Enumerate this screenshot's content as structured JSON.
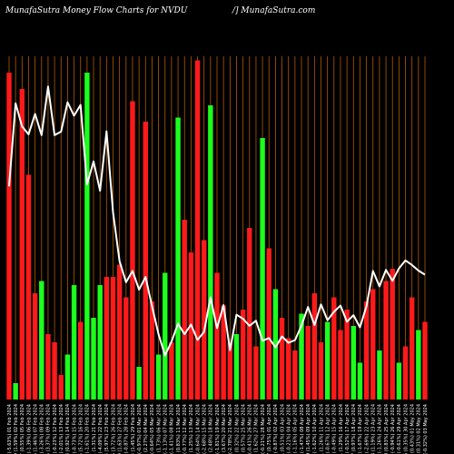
{
  "header": {
    "title": "MunafaSutra  Money Flow  Charts for NVDU",
    "site": "/] MunafaSutra.com"
  },
  "chart_data": {
    "type": "bar",
    "title": "MunafaSutra  Money Flow  Charts for NVDU",
    "xlabel": "",
    "ylabel": "",
    "colors": {
      "up": "#1dff1d",
      "down": "#ff1a1a",
      "line": "#ffffff",
      "grid": "#b35a00",
      "background": "#000000"
    },
    "categories": [
      "121.63 (-5.63%) 01 Feb 2024",
      "128.89 (1.59%) 02 Feb 2024",
      "126.87 (0.55%) 05 Feb 2024",
      "126.18 (-1.39%) 06 Feb 2024",
      "127.96 (1.46%) 07 Feb 2024",
      "126.11 (-3.26%) 08 Feb 2024",
      "130.36 (3.37%) 09 Feb 2024",
      "126.11 (-0.23%) 12 Feb 2024",
      "126.41 (-2.01%) 13 Feb 2024",
      "128.98 (0.92%) 14 Feb 2024",
      "127.81 (-0.73%) 15 Feb 2024",
      "128.75 (5.72%) 16 Feb 2024",
      "121.81 (-1.61%) 20 Feb 2024",
      "123.81 (1.31%) 21 Feb 2024",
      "121.25 (-4.09%) 22 Feb 2024",
      "126.44 (5.97%) 23 Feb 2024",
      "119.36 (3.72%) 26 Feb 2024",
      "115.09 (1.63%) 27 Feb 2024",
      "113.25 (-0.87%) 28 Feb 2024",
      "114.24 (1.45%) 29 Feb 2024",
      "112.61 (-0.97%) 01 Mar 2024",
      "113.71 (2.27%) 04 Mar 2024",
      "111.16 (-0.64%) 05 Mar 2024",
      "108.71 (1.73%) 06 Mar 2024",
      "106.85 (-1.13%) 07 Mar 2024",
      "108.07 (-1.41%) 08 Mar 2024",
      "109.62 (0.83%) 11 Mar 2024",
      "108.71 (-0.77%) 12 Mar 2024",
      "109.55 (1.25%) 13 Mar 2024",
      "108.21 (-0.64%) 14 Mar 2024",
      "108.90 (-2.68%) 15 Mar 2024",
      "111.93 (2.48%) 18 Mar 2024",
      "109.24 (-1.81%) 19 Mar 2024",
      "111.25 (3.67%) 20 Mar 2024",
      "107.31 (-2.78%) 21 Mar 2024",
      "110.41 (0.32%) 22 Mar 2024",
      "110.06 (0.57%) 25 Mar 2024",
      "109.44 (-0.41%) 26 Mar 2024",
      "109.89 (1.62%) 27 Mar 2024",
      "108.14 (-0.21%) 28 Mar 2024",
      "108.37 (0.75%) 01 Apr 2024",
      "107.56 (-0.87%) 02 Apr 2024",
      "108.51 (0.51%) 03 Apr 2024",
      "107.96 (-0.21%) 04 Apr 2024",
      "108.19 (-1.16%) 05 Apr 2024",
      "109.46 (-1.47%) 08 Apr 2024",
      "111.09 (1.45%) 09 Apr 2024",
      "109.51 (-1.62%) 10 Apr 2024",
      "111.31 (1.26%) 11 Apr 2024",
      "109.93 (-0.67%) 12 Apr 2024",
      "110.67 (-0.49%) 15 Apr 2024",
      "111.21 (1.29%) 16 Apr 2024",
      "109.80 (-0.52%) 17 Apr 2024",
      "110.37 (0.97%) 18 Apr 2024",
      "109.31 (-1.67%) 19 Apr 2024",
      "111.16 (-2.69%) 22 Apr 2024",
      "114.24 (1.19%) 23 Apr 2024",
      "112.89 (-1.26%) 24 Apr 2024",
      "114.33 (0.83%) 25 Apr 2024",
      "113.38 (-0.94%) 26 Apr 2024",
      "114.46 (-0.61%) 29 Apr 2024",
      "115.16 (0.35%) 30 Apr 2024",
      "114.76 (0.43%) 01 May 2024",
      "114.27 (0.31%) 02 May 2024",
      "113.91 (-0.32%) 03 May 2024"
    ],
    "flow": [
      "down",
      "up",
      "down",
      "down",
      "down",
      "up",
      "down",
      "down",
      "down",
      "up",
      "up",
      "down",
      "up",
      "up",
      "up",
      "down",
      "down",
      "down",
      "down",
      "down",
      "up",
      "down",
      "down",
      "up",
      "up",
      "down",
      "up",
      "down",
      "down",
      "down",
      "down",
      "up",
      "down",
      "down",
      "down",
      "up",
      "down",
      "down",
      "down",
      "up",
      "down",
      "up",
      "down",
      "down",
      "down",
      "up",
      "down",
      "down",
      "down",
      "up",
      "down",
      "down",
      "down",
      "up",
      "up",
      "down",
      "down",
      "up",
      "down",
      "down",
      "up",
      "down",
      "down",
      "up",
      "down"
    ],
    "values": [
      8.0,
      0.4,
      7.6,
      5.5,
      2.6,
      2.9,
      1.6,
      1.4,
      0.6,
      1.1,
      2.8,
      1.9,
      8.0,
      2.0,
      2.8,
      3.0,
      3.0,
      3.3,
      2.5,
      7.3,
      0.8,
      6.8,
      2.4,
      1.1,
      3.1,
      1.4,
      6.9,
      4.4,
      3.6,
      8.3,
      3.9,
      7.2,
      3.1,
      2.3,
      1.4,
      1.6,
      2.2,
      4.2,
      1.3,
      6.4,
      3.7,
      2.7,
      2.0,
      1.5,
      1.2,
      2.1,
      1.8,
      2.6,
      1.4,
      1.9,
      2.5,
      1.7,
      2.2,
      1.8,
      0.9,
      2.4,
      2.7,
      1.2,
      2.9,
      3.2,
      0.9,
      1.3,
      2.5,
      1.7,
      1.9
    ],
    "price": [
      121.63,
      128.89,
      126.87,
      126.18,
      127.96,
      126.11,
      130.36,
      126.11,
      126.41,
      128.98,
      127.81,
      128.75,
      121.81,
      123.81,
      121.25,
      126.44,
      119.36,
      115.09,
      113.25,
      114.24,
      112.61,
      113.71,
      111.16,
      108.71,
      106.85,
      108.07,
      109.62,
      108.71,
      109.55,
      108.21,
      108.9,
      111.93,
      109.24,
      111.25,
      107.31,
      110.41,
      110.06,
      109.44,
      109.89,
      108.14,
      108.37,
      107.56,
      108.51,
      107.96,
      108.19,
      109.46,
      111.09,
      109.51,
      111.31,
      109.93,
      110.67,
      111.21,
      109.8,
      110.37,
      109.31,
      111.16,
      114.24,
      112.89,
      114.33,
      113.38,
      114.46,
      115.16,
      114.76,
      114.27,
      113.91
    ],
    "ylim": [
      0,
      8.4
    ],
    "price_range": [
      103,
      133
    ],
    "grid": true,
    "legend": "none"
  }
}
